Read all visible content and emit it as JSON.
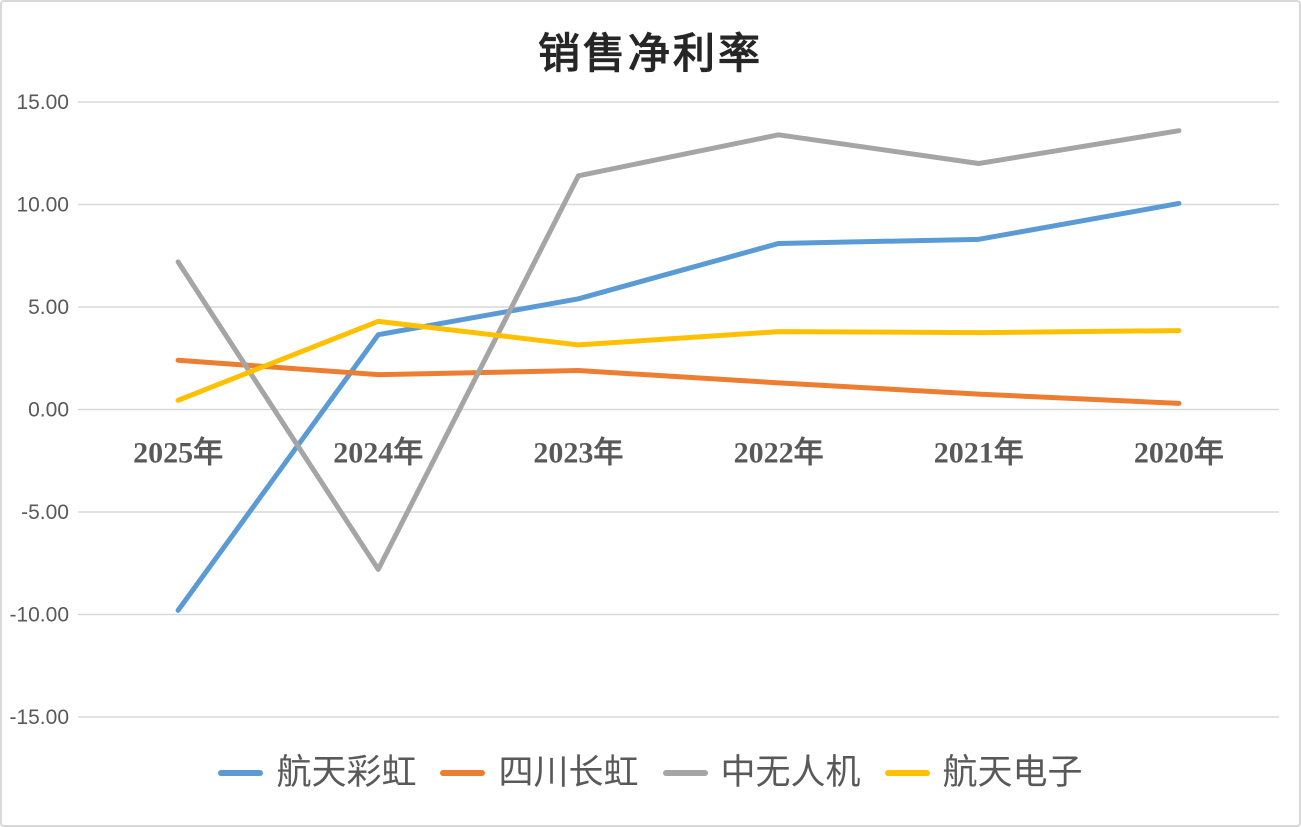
{
  "chart_data": {
    "type": "line",
    "title": "销售净利率",
    "categories": [
      "2025年",
      "2024年",
      "2023年",
      "2022年",
      "2021年",
      "2020年"
    ],
    "series": [
      {
        "name": "航天彩虹",
        "color": "#5B9BD5",
        "values": [
          -9.8,
          3.65,
          5.4,
          8.1,
          8.3,
          10.05
        ]
      },
      {
        "name": "四川长虹",
        "color": "#ED7D31",
        "values": [
          2.4,
          1.7,
          1.9,
          1.3,
          0.75,
          0.3
        ]
      },
      {
        "name": "中无人机",
        "color": "#A5A5A5",
        "values": [
          7.2,
          -7.8,
          11.4,
          13.4,
          12.0,
          13.6
        ]
      },
      {
        "name": "航天电子",
        "color": "#FFC000",
        "values": [
          0.45,
          4.3,
          3.15,
          3.8,
          3.75,
          3.85
        ]
      }
    ],
    "y_axis": {
      "min": -15,
      "max": 15,
      "step": 5,
      "tick_labels": [
        "15.00",
        "10.00",
        "5.00",
        "0.00",
        "-5.00",
        "-10.00",
        "-15.00"
      ]
    },
    "grid": true,
    "gridline_color": "#D9D9D9",
    "label_color": "#595959",
    "title_color": "#262626",
    "legend_position": "bottom"
  }
}
